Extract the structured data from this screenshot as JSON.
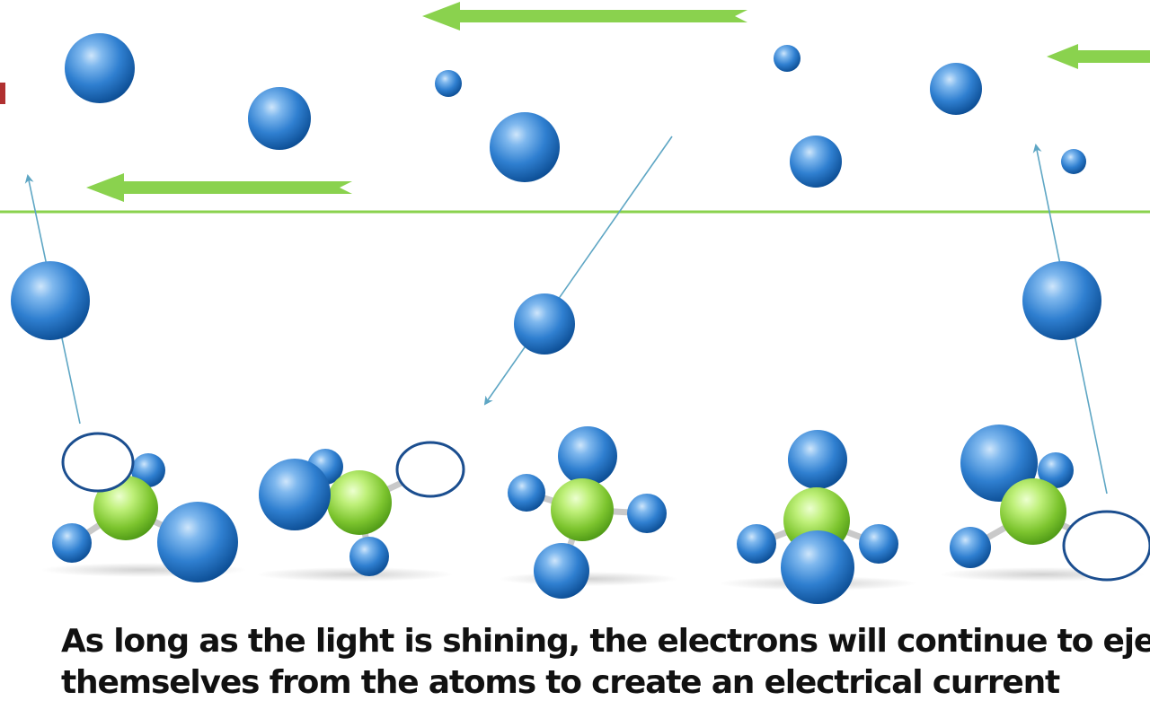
{
  "caption": {
    "line1": "As long as the light is shining, the electrons will continue to ejec",
    "line2": "themselves from the atoms to create an electrical current"
  },
  "colors": {
    "electron_dark": "#0d4f96",
    "electron_mid": "#2f7fd0",
    "electron_light": "#7fb8ee",
    "nucleus_dark": "#4f9a16",
    "nucleus_light": "#bff07a",
    "bond": "#c9c9c9",
    "vacancy_stroke": "#1b4e8f",
    "current_arrow": "#8ad24e",
    "wire": "#8ad24e",
    "trajectory": "#5ea6c4",
    "edge_marker": "#b03030"
  },
  "icons": {
    "electron": "blue-sphere",
    "nucleus": "green-sphere",
    "vacancy": "empty-hole-ring",
    "current": "flow-arrow-left"
  }
}
